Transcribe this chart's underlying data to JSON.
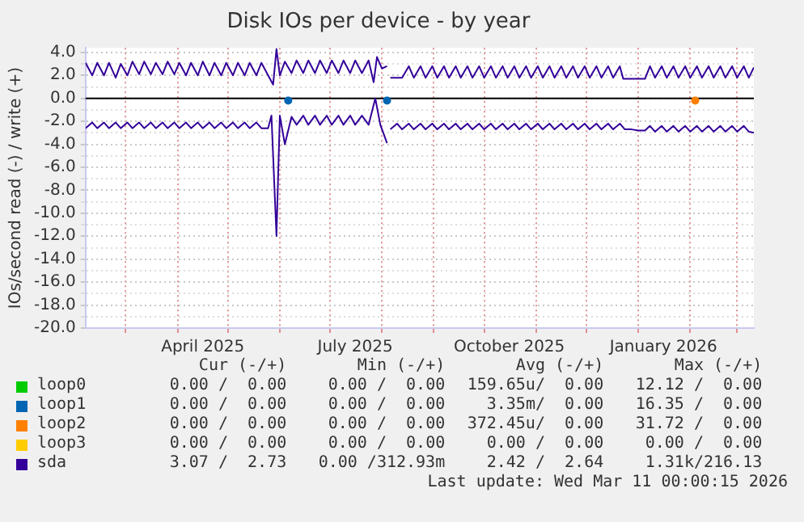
{
  "chart_data": {
    "type": "line",
    "title": "Disk IOs per device - by year",
    "ylabel": "IOs/second read (-) / write (+)",
    "xlim": [
      "2025-02-05",
      "2026-03-11"
    ],
    "xticks": [
      {
        "value": "2025-03-01",
        "label": null
      },
      {
        "value": "2025-04-01",
        "label": null
      },
      {
        "value": "2025-04-16",
        "label": "April 2025"
      },
      {
        "value": "2025-05-01",
        "label": null
      },
      {
        "value": "2025-06-01",
        "label": null
      },
      {
        "value": "2025-07-01",
        "label": null
      },
      {
        "value": "2025-07-16",
        "label": "July 2025"
      },
      {
        "value": "2025-08-01",
        "label": null
      },
      {
        "value": "2025-09-01",
        "label": null
      },
      {
        "value": "2025-10-01",
        "label": null
      },
      {
        "value": "2025-10-16",
        "label": "October 2025"
      },
      {
        "value": "2025-11-01",
        "label": null
      },
      {
        "value": "2025-12-01",
        "label": null
      },
      {
        "value": "2026-01-01",
        "label": null
      },
      {
        "value": "2026-01-16",
        "label": "January 2026"
      },
      {
        "value": "2026-02-01",
        "label": null
      },
      {
        "value": "2026-03-01",
        "label": null
      }
    ],
    "ylim": [
      -20,
      4.4
    ],
    "yticks": [
      {
        "value": -20,
        "label": "-20.0"
      },
      {
        "value": -19,
        "label": null
      },
      {
        "value": -18,
        "label": "-18.0"
      },
      {
        "value": -17,
        "label": null
      },
      {
        "value": -16,
        "label": "-16.0"
      },
      {
        "value": -15,
        "label": null
      },
      {
        "value": -14,
        "label": "-14.0"
      },
      {
        "value": -13,
        "label": null
      },
      {
        "value": -12,
        "label": "-12.0"
      },
      {
        "value": -11,
        "label": null
      },
      {
        "value": -10,
        "label": "-10.0"
      },
      {
        "value": -9,
        "label": null
      },
      {
        "value": -8,
        "label": "-8.0"
      },
      {
        "value": -7,
        "label": null
      },
      {
        "value": -6,
        "label": "-6.0"
      },
      {
        "value": -5,
        "label": null
      },
      {
        "value": -4,
        "label": "-4.0"
      },
      {
        "value": -3,
        "label": null
      },
      {
        "value": -2,
        "label": "-2.0"
      },
      {
        "value": -1,
        "label": null
      },
      {
        "value": 0,
        "label": "0.0"
      },
      {
        "value": 1,
        "label": null
      },
      {
        "value": 2,
        "label": "2.0"
      },
      {
        "value": 3,
        "label": null
      },
      {
        "value": 4,
        "label": "4.0"
      }
    ],
    "ref_lines": [
      {
        "axis": "y",
        "value": 0,
        "color": "#000000"
      }
    ],
    "grid": true,
    "legend": "bottom",
    "marker": "none",
    "line_style": "solid",
    "series": [
      {
        "name": "loop0",
        "color": "#00cc00"
      },
      {
        "name": "loop1",
        "type": "scatter",
        "marker": "circle",
        "color": "#0066b3",
        "x": [
          "2025-06-06",
          "2025-08-04"
        ],
        "values": [
          -0.2,
          -0.2
        ]
      },
      {
        "name": "loop2",
        "type": "scatter",
        "marker": "circle",
        "color": "#ff8000",
        "x": [
          "2026-02-04"
        ],
        "values": [
          -0.2
        ]
      },
      {
        "name": "loop3",
        "color": "#ffcc00"
      },
      {
        "name": "sda",
        "color": "#330099",
        "x": [
          "2025-02-05",
          "2025-02-09",
          "2025-02-12",
          "2025-02-16",
          "2025-02-19",
          "2025-02-23",
          "2025-02-26",
          "2025-03-02",
          "2025-03-05",
          "2025-03-09",
          "2025-03-12",
          "2025-03-16",
          "2025-03-19",
          "2025-03-23",
          "2025-03-26",
          "2025-03-30",
          "2025-04-02",
          "2025-04-06",
          "2025-04-09",
          "2025-04-13",
          "2025-04-16",
          "2025-04-20",
          "2025-04-23",
          "2025-04-27",
          "2025-04-30",
          "2025-05-04",
          "2025-05-07",
          "2025-05-11",
          "2025-05-14",
          "2025-05-18",
          "2025-05-21",
          "2025-05-25",
          "2025-05-28",
          "2025-05-30",
          "2025-06-01",
          "2025-06-04",
          "2025-06-08",
          "2025-06-11",
          "2025-06-15",
          "2025-06-18",
          "2025-06-22",
          "2025-06-25",
          "2025-06-29",
          "2025-07-02",
          "2025-07-06",
          "2025-07-09",
          "2025-07-13",
          "2025-07-16",
          "2025-07-20",
          "2025-07-24",
          "2025-07-27",
          "2025-07-29",
          "2025-08-01",
          "2025-08-04",
          "2025-08-05",
          "2025-08-06",
          "2025-08-13",
          "2025-08-17",
          "2025-08-20",
          "2025-08-24",
          "2025-08-27",
          "2025-08-31",
          "2025-09-03",
          "2025-09-07",
          "2025-09-10",
          "2025-09-14",
          "2025-09-17",
          "2025-09-21",
          "2025-09-24",
          "2025-09-28",
          "2025-10-01",
          "2025-10-05",
          "2025-10-08",
          "2025-10-12",
          "2025-10-15",
          "2025-10-19",
          "2025-10-22",
          "2025-10-26",
          "2025-10-29",
          "2025-11-02",
          "2025-11-05",
          "2025-11-09",
          "2025-11-12",
          "2025-11-16",
          "2025-11-19",
          "2025-11-23",
          "2025-11-26",
          "2025-11-30",
          "2025-12-03",
          "2025-12-07",
          "2025-12-10",
          "2025-12-14",
          "2025-12-17",
          "2025-12-21",
          "2025-12-23",
          "2026-01-05",
          "2026-01-08",
          "2026-01-11",
          "2026-01-15",
          "2026-01-18",
          "2026-01-22",
          "2026-01-25",
          "2026-01-29",
          "2026-02-01",
          "2026-02-05",
          "2026-02-08",
          "2026-02-12",
          "2026-02-15",
          "2026-02-19",
          "2026-02-22",
          "2026-02-26",
          "2026-03-01",
          "2026-03-05",
          "2026-03-08",
          "2026-03-11"
        ],
        "values": [
          3.1,
          2.0,
          3.1,
          2.0,
          3.1,
          1.8,
          3.0,
          2.0,
          3.2,
          2.1,
          3.2,
          2.1,
          3.1,
          2.1,
          3.2,
          2.1,
          3.1,
          2.0,
          3.1,
          2.0,
          3.2,
          2.0,
          3.1,
          2.0,
          3.1,
          2.0,
          3.1,
          2.0,
          3.1,
          2.0,
          3.1,
          2.0,
          1.2,
          4.3,
          2.0,
          3.2,
          2.2,
          3.3,
          2.2,
          3.3,
          2.2,
          3.3,
          2.2,
          3.3,
          2.2,
          3.3,
          2.2,
          3.3,
          2.2,
          3.3,
          1.4,
          3.6,
          2.6,
          2.8,
          null,
          1.8,
          1.8,
          2.8,
          1.8,
          2.8,
          1.8,
          2.8,
          1.8,
          2.8,
          1.8,
          2.8,
          1.8,
          2.8,
          1.8,
          2.8,
          1.8,
          2.8,
          1.8,
          2.8,
          1.8,
          2.8,
          1.8,
          2.8,
          1.8,
          2.8,
          1.8,
          2.8,
          1.8,
          2.8,
          1.8,
          2.8,
          1.8,
          2.8,
          1.8,
          2.8,
          1.8,
          2.8,
          1.8,
          2.8,
          1.7,
          1.7,
          2.8,
          1.8,
          2.8,
          1.8,
          2.8,
          1.8,
          2.8,
          1.8,
          2.8,
          1.8,
          2.8,
          1.8,
          2.8,
          1.8,
          2.8,
          1.8,
          2.8,
          1.8,
          2.7
        ]
      },
      {
        "color": "#330099",
        "x": [
          "2025-02-05",
          "2025-02-09",
          "2025-02-12",
          "2025-02-16",
          "2025-02-19",
          "2025-02-23",
          "2025-02-26",
          "2025-03-02",
          "2025-03-05",
          "2025-03-09",
          "2025-03-12",
          "2025-03-16",
          "2025-03-19",
          "2025-03-23",
          "2025-03-26",
          "2025-03-30",
          "2025-04-02",
          "2025-04-06",
          "2025-04-09",
          "2025-04-13",
          "2025-04-16",
          "2025-04-20",
          "2025-04-23",
          "2025-04-27",
          "2025-04-30",
          "2025-05-04",
          "2025-05-07",
          "2025-05-11",
          "2025-05-14",
          "2025-05-18",
          "2025-05-21",
          "2025-05-25",
          "2025-05-27",
          "2025-05-30",
          "2025-06-01",
          "2025-06-04",
          "2025-06-08",
          "2025-06-11",
          "2025-06-15",
          "2025-06-18",
          "2025-06-22",
          "2025-06-25",
          "2025-06-29",
          "2025-07-02",
          "2025-07-06",
          "2025-07-09",
          "2025-07-13",
          "2025-07-16",
          "2025-07-20",
          "2025-07-24",
          "2025-07-28",
          "2025-07-31",
          "2025-08-04",
          "2025-08-05",
          "2025-08-06",
          "2025-08-10",
          "2025-08-13",
          "2025-08-17",
          "2025-08-20",
          "2025-08-24",
          "2025-08-27",
          "2025-08-31",
          "2025-09-03",
          "2025-09-07",
          "2025-09-10",
          "2025-09-14",
          "2025-09-17",
          "2025-09-21",
          "2025-09-24",
          "2025-09-28",
          "2025-10-01",
          "2025-10-05",
          "2025-10-08",
          "2025-10-12",
          "2025-10-15",
          "2025-10-19",
          "2025-10-22",
          "2025-10-26",
          "2025-10-29",
          "2025-11-02",
          "2025-11-05",
          "2025-11-09",
          "2025-11-12",
          "2025-11-16",
          "2025-11-19",
          "2025-11-23",
          "2025-11-26",
          "2025-11-30",
          "2025-12-03",
          "2025-12-07",
          "2025-12-10",
          "2025-12-14",
          "2025-12-17",
          "2025-12-21",
          "2025-12-24",
          "2025-12-28",
          "2026-01-01",
          "2026-01-05",
          "2026-01-08",
          "2026-01-11",
          "2026-01-15",
          "2026-01-18",
          "2026-01-22",
          "2026-01-25",
          "2026-01-29",
          "2026-02-01",
          "2026-02-05",
          "2026-02-08",
          "2026-02-12",
          "2026-02-15",
          "2026-02-19",
          "2026-02-22",
          "2026-02-26",
          "2026-03-01",
          "2026-03-05",
          "2026-03-08",
          "2026-03-11"
        ],
        "values": [
          -2.6,
          -2.1,
          -2.6,
          -2.1,
          -2.6,
          -2.1,
          -2.6,
          -2.1,
          -2.6,
          -2.1,
          -2.6,
          -2.1,
          -2.6,
          -2.1,
          -2.6,
          -2.1,
          -2.6,
          -2.1,
          -2.6,
          -2.1,
          -2.6,
          -2.1,
          -2.6,
          -2.1,
          -2.6,
          -2.1,
          -2.6,
          -2.1,
          -2.6,
          -2.1,
          -2.6,
          -2.6,
          -1.5,
          -12.0,
          -1.5,
          -4.0,
          -1.6,
          -2.3,
          -1.5,
          -2.3,
          -1.5,
          -2.3,
          -1.5,
          -2.3,
          -1.5,
          -2.3,
          -1.5,
          -2.3,
          -1.5,
          -2.3,
          0.0,
          -2.3,
          -3.9,
          null,
          -2.7,
          -2.2,
          -2.7,
          -2.2,
          -2.7,
          -2.2,
          -2.7,
          -2.2,
          -2.7,
          -2.2,
          -2.7,
          -2.2,
          -2.7,
          -2.2,
          -2.7,
          -2.2,
          -2.7,
          -2.2,
          -2.7,
          -2.2,
          -2.7,
          -2.2,
          -2.7,
          -2.2,
          -2.7,
          -2.2,
          -2.7,
          -2.2,
          -2.7,
          -2.2,
          -2.7,
          -2.2,
          -2.7,
          -2.2,
          -2.7,
          -2.2,
          -2.7,
          -2.2,
          -2.7,
          -2.2,
          -2.7,
          -2.7,
          -2.8,
          -2.8,
          -2.4,
          -2.9,
          -2.4,
          -2.9,
          -2.4,
          -2.9,
          -2.4,
          -2.9,
          -2.4,
          -2.9,
          -2.4,
          -2.9,
          -2.4,
          -2.9,
          -2.4,
          -2.9,
          -2.4,
          -2.9,
          -3.0
        ]
      }
    ],
    "annotations": [
      "Cur (-/+)",
      "Min (-/+)",
      "Avg (-/+)",
      "Max (-/+)",
      "0.00 /  0.00",
      "0.00 /  0.00",
      "159.65u/  0.00",
      "12.12 /  0.00",
      "0.00 /  0.00",
      "0.00 /  0.00",
      "3.35m/  0.00",
      "16.35 /  0.00",
      "0.00 /  0.00",
      "0.00 /  0.00",
      "372.45u/  0.00",
      "31.72 /  0.00",
      "0.00 /  0.00",
      "0.00 /  0.00",
      "0.00 /  0.00",
      "0.00 /  0.00",
      "3.07 /  2.73",
      "0.00 /312.93m",
      "2.42 /  2.64",
      "1.31k/216.13",
      "Last update: Wed Mar 11 00:00:15 2026"
    ]
  }
}
